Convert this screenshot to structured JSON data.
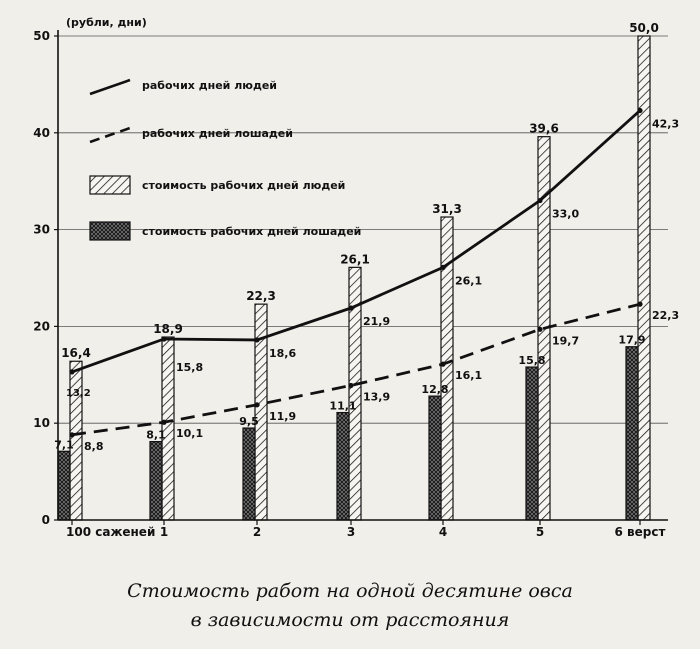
{
  "chart_data": {
    "type": "bar",
    "ylabel": "(рубли, дни)",
    "ylim": [
      0,
      50
    ],
    "yticks": [
      "0",
      "10",
      "20",
      "30",
      "40",
      "50"
    ],
    "categories": [
      "100 саженей",
      "1",
      "2",
      "3",
      "4",
      "5",
      "6 верст"
    ],
    "grid": true,
    "legend_position": "top-left",
    "series": [
      {
        "name": "рабочих дней людей",
        "kind": "line",
        "style": "solid",
        "values": [
          15.3,
          18.7,
          18.6,
          21.9,
          26.1,
          33.0,
          42.3
        ],
        "labels": [
          "",
          "",
          "18,6",
          "21,9",
          "26,1",
          "33,0",
          "42,3"
        ]
      },
      {
        "name": "рабочих дней лошадей",
        "kind": "line",
        "style": "dashed",
        "values": [
          8.8,
          10.1,
          11.9,
          13.9,
          16.1,
          19.7,
          22.3
        ],
        "labels": [
          "8,8",
          "10,1",
          "11,9",
          "13,9",
          "16,1",
          "19,7",
          "22,3"
        ]
      },
      {
        "name": "стоимость рабочих дней людей",
        "kind": "bar",
        "pattern": "hatch",
        "values": [
          16.4,
          18.9,
          22.3,
          26.1,
          31.3,
          39.6,
          50.0
        ],
        "labels": [
          "16,4",
          "18,9",
          "22,3",
          "26,1",
          "31,3",
          "39,6",
          "50,0"
        ]
      },
      {
        "name": "стоимость рабочих дней лошадей",
        "kind": "bar",
        "pattern": "crosshatch",
        "values": [
          7.1,
          8.1,
          9.5,
          11.1,
          12.8,
          15.8,
          17.9
        ],
        "labels": [
          "7,1",
          "8,1",
          "9,5",
          "11,1",
          "12,8",
          "15,8",
          "17,9"
        ]
      }
    ],
    "extra_labels": [
      "13,2",
      "15,8"
    ]
  },
  "caption": {
    "line1": "Стоимость работ на одной десятине овса",
    "line2": "в зависимости от расстояния"
  },
  "colors": {
    "paper": "#f1efea",
    "ink": "#111111",
    "fill_dark": "#8a8a8a"
  }
}
